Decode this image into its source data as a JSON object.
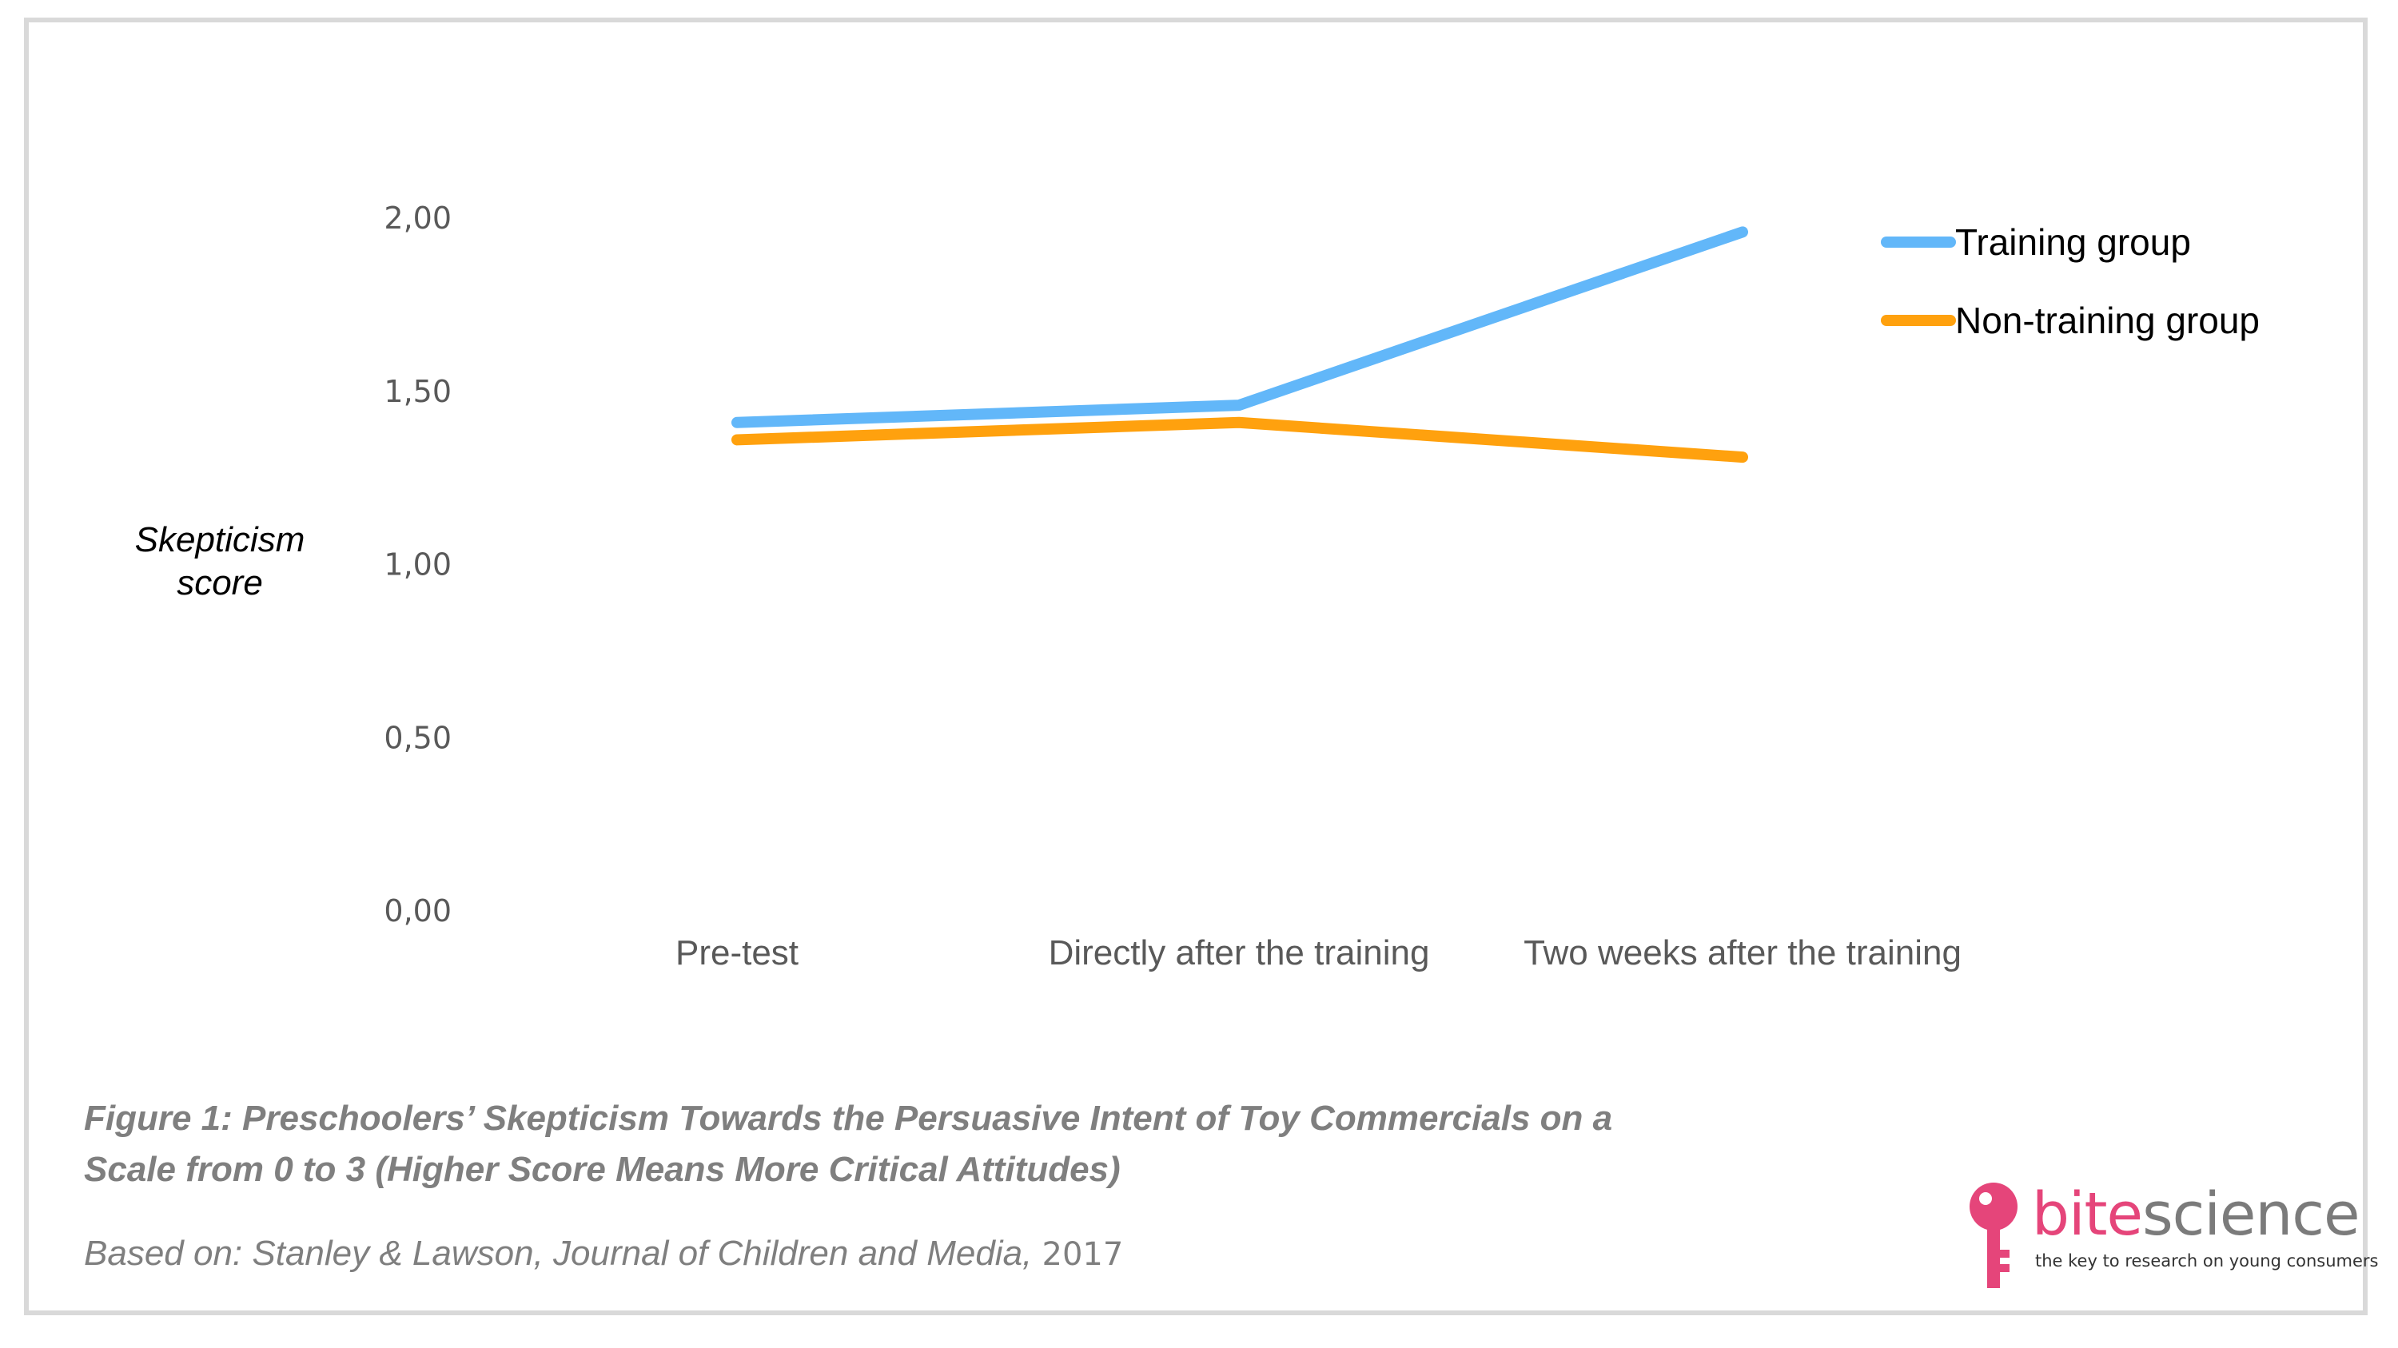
{
  "chart_data": {
    "type": "line",
    "categories": [
      "Pre-test",
      "Directly after the training",
      "Two weeks after the training"
    ],
    "series": [
      {
        "name": "Training group",
        "values": [
          1.41,
          1.46,
          1.96
        ],
        "color": "#62b7f9"
      },
      {
        "name": "Non-training group",
        "values": [
          1.36,
          1.41,
          1.31
        ],
        "color": "#ffa10e"
      }
    ],
    "y_ticks": [
      "0,00",
      "0,50",
      "1,00",
      "1,50",
      "2,00"
    ],
    "y_tick_values": [
      0,
      0.5,
      1,
      1.5,
      2
    ],
    "ylim": [
      0,
      2
    ],
    "ylabel": [
      "Skepticism",
      "score"
    ],
    "legend_position": "top-right",
    "grid": false
  },
  "caption": {
    "line1": "Figure 1: Preschoolers’ Skepticism Towards the Persuasive Intent of Toy Commercials on a",
    "line2": "Scale from 0 to 3 (Higher Score Means More Critical Attitudes)"
  },
  "source": {
    "text": "Based on: Stanley & Lawson, Journal of Children and Media,",
    "year": "2017"
  },
  "logo": {
    "word_a": "bite",
    "word_b": "science",
    "tagline": "the key to research on young consumers",
    "color": "#e5457a",
    "icon": "key-icon"
  }
}
